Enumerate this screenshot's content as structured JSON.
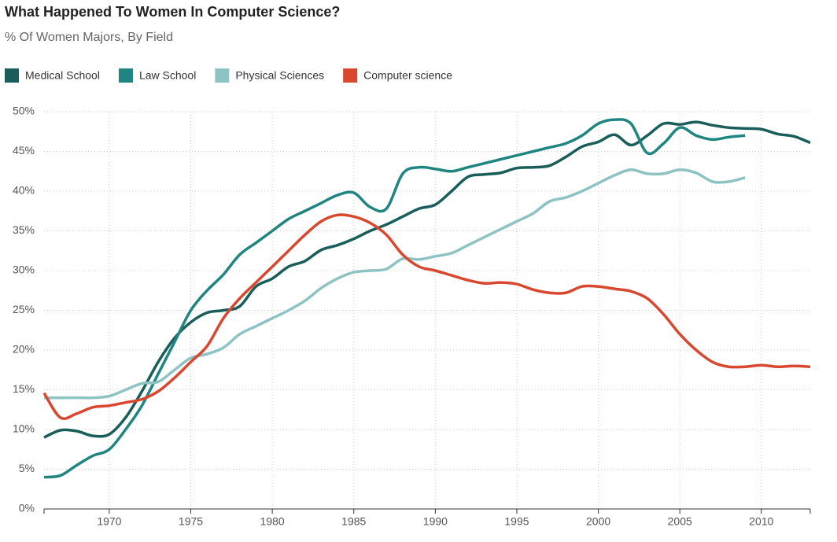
{
  "chart_data": {
    "type": "line",
    "title": "What Happened To Women In Computer Science?",
    "subtitle": "% Of Women Majors, By Field",
    "x": [
      1966,
      1967,
      1968,
      1969,
      1970,
      1971,
      1972,
      1973,
      1974,
      1975,
      1976,
      1977,
      1978,
      1979,
      1980,
      1981,
      1982,
      1983,
      1984,
      1985,
      1986,
      1987,
      1988,
      1989,
      1990,
      1991,
      1992,
      1993,
      1994,
      1995,
      1996,
      1997,
      1998,
      1999,
      2000,
      2001,
      2002,
      2003,
      2004,
      2005,
      2006,
      2007,
      2008,
      2009,
      2010,
      2011,
      2012,
      2013
    ],
    "series": [
      {
        "name": "Medical School",
        "color": "#1a5e5b",
        "values": [
          9,
          9.9,
          9.8,
          9.2,
          9.4,
          11.5,
          14.8,
          18.5,
          21.5,
          23.5,
          24.7,
          25,
          25.5,
          28,
          29,
          30.5,
          31.2,
          32.6,
          33.2,
          34,
          35,
          35.8,
          36.8,
          37.8,
          38.3,
          40,
          41.8,
          42.1,
          42.3,
          42.9,
          43,
          43.2,
          44.3,
          45.6,
          46.2,
          47.1,
          45.8,
          47,
          48.5,
          48.4,
          48.7,
          48.3,
          48,
          47.9,
          47.8,
          47.2,
          46.9,
          46.1
        ]
      },
      {
        "name": "Law School",
        "color": "#1f8580",
        "values": [
          4,
          4.2,
          5.5,
          6.7,
          7.5,
          10,
          13,
          17,
          21,
          25,
          27.5,
          29.5,
          32,
          33.5,
          35,
          36.5,
          37.5,
          38.5,
          39.5,
          39.8,
          38,
          37.8,
          42.2,
          43,
          42.8,
          42.5,
          43,
          43.5,
          44,
          44.5,
          45,
          45.5,
          46,
          47,
          48.5,
          49,
          48.5,
          44.8,
          46,
          48,
          47,
          46.5,
          46.8,
          47,
          null,
          null,
          null,
          null
        ]
      },
      {
        "name": "Physical Sciences",
        "color": "#8ec3c3",
        "values": [
          14,
          14,
          14,
          14,
          14.2,
          15,
          15.8,
          16,
          17.5,
          19,
          19.5,
          20.3,
          22,
          23,
          24,
          25,
          26.2,
          27.8,
          29,
          29.8,
          30,
          30.2,
          31.5,
          31.4,
          31.8,
          32.2,
          33.2,
          34.2,
          35.2,
          36.2,
          37.2,
          38.7,
          39.2,
          40,
          41,
          42,
          42.7,
          42.2,
          42.2,
          42.7,
          42.3,
          41.2,
          41.2,
          41.7,
          null,
          null,
          null,
          null
        ]
      },
      {
        "name": "Computer science",
        "color": "#d9472f",
        "values": [
          14.6,
          11.5,
          12,
          12.8,
          13,
          13.4,
          13.8,
          14.8,
          16.5,
          18.5,
          20.5,
          24,
          26.5,
          28.5,
          30.5,
          32.5,
          34.5,
          36.2,
          37,
          36.8,
          36,
          34.5,
          32,
          30.5,
          30,
          29.4,
          28.8,
          28.4,
          28.5,
          28.3,
          27.6,
          27.2,
          27.2,
          28,
          28,
          27.7,
          27.4,
          26.5,
          24.5,
          22,
          20,
          18.5,
          17.9,
          17.9,
          18.1,
          17.9,
          18,
          17.9
        ]
      }
    ],
    "xlim": [
      1966,
      2013
    ],
    "xticks": [
      1970,
      1975,
      1980,
      1985,
      1990,
      1995,
      2000,
      2005,
      2010
    ],
    "ylim": [
      0,
      50
    ],
    "yticks": [
      {
        "value": 0,
        "label": "0%"
      },
      {
        "value": 5,
        "label": "5%"
      },
      {
        "value": 10,
        "label": "10%"
      },
      {
        "value": 15,
        "label": "15%"
      },
      {
        "value": 20,
        "label": "20%"
      },
      {
        "value": 25,
        "label": "25%"
      },
      {
        "value": 30,
        "label": "30%"
      },
      {
        "value": 35,
        "label": "35%"
      },
      {
        "value": 40,
        "label": "40%"
      },
      {
        "value": 45,
        "label": "45%"
      },
      {
        "value": 50,
        "label": "50%"
      }
    ],
    "grid": true
  }
}
